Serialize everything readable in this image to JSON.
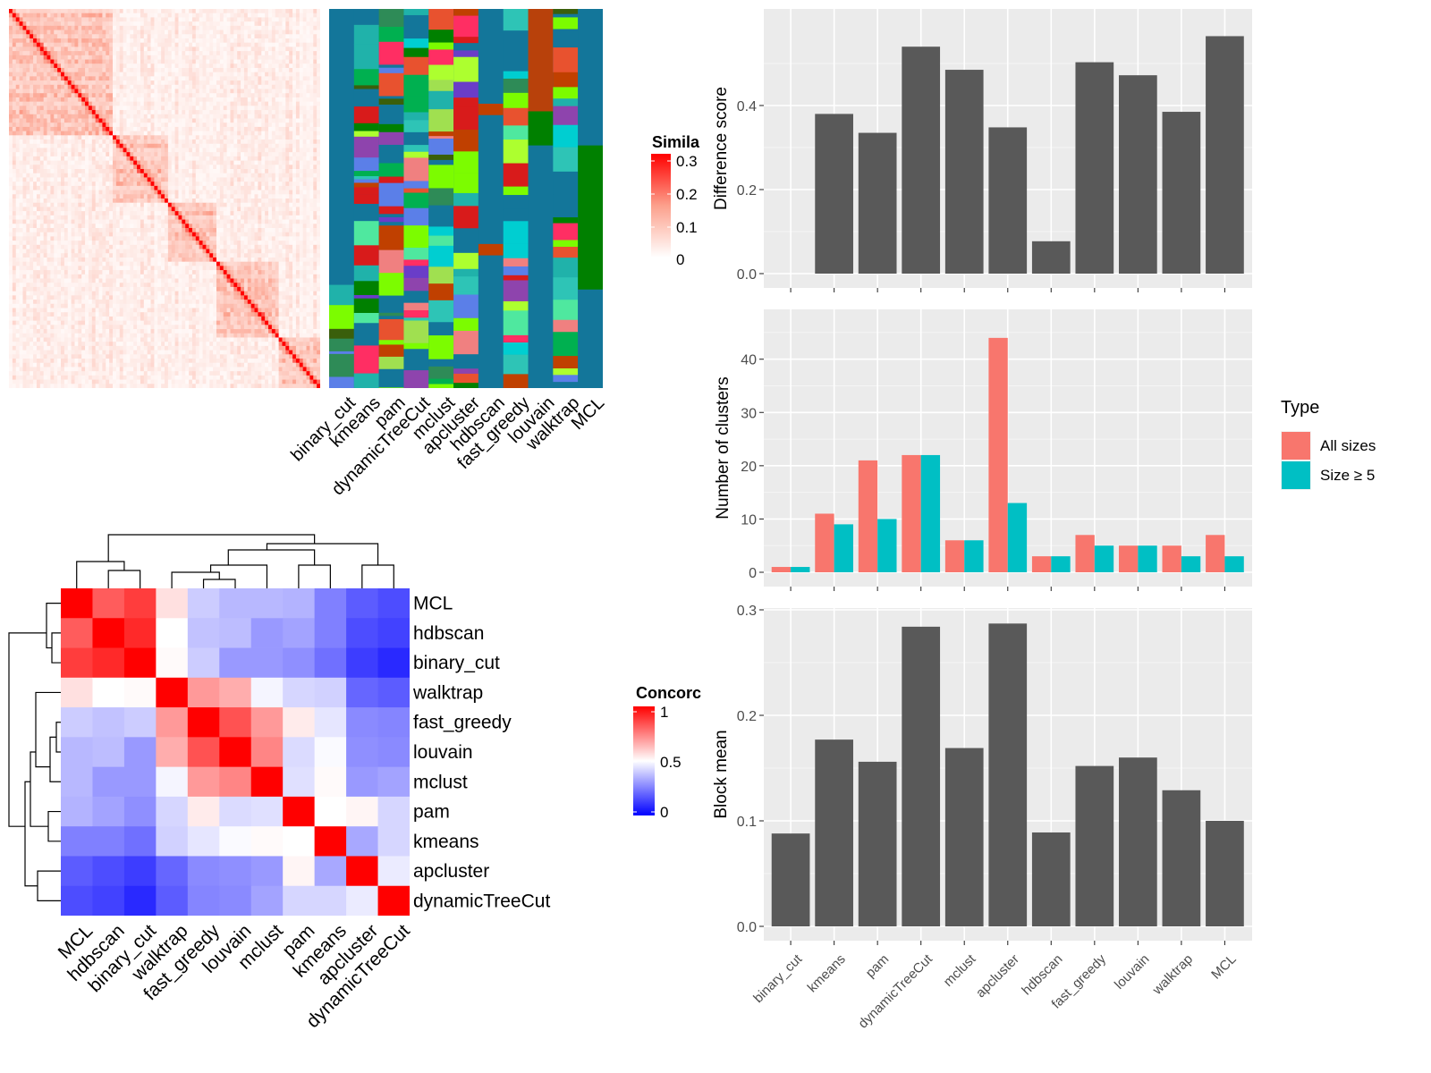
{
  "colors": {
    "panel_bg": "#EBEBEB",
    "bar_fill": "#595959",
    "all_sizes": "#F8766D",
    "size_ge5": "#00BFC4",
    "heat_high": "#FF0000",
    "conc_low": "#0000FF",
    "base_blue": "#13769A"
  },
  "similarity_heatmap": {
    "legend_title": "Simila",
    "legend_ticks": [
      "0.3",
      "0.2",
      "0.1",
      "0"
    ],
    "n": 90,
    "blocks": [
      [
        0,
        30
      ],
      [
        30,
        46
      ],
      [
        46,
        60
      ],
      [
        60,
        78
      ],
      [
        78,
        90
      ]
    ]
  },
  "membership_annotation": {
    "methods": [
      "binary_cut",
      "kmeans",
      "pam",
      "dynamicTreeCut",
      "mclust",
      "apcluster",
      "hdbscan",
      "fast_greedy",
      "louvain",
      "walktrap",
      "MCL"
    ]
  },
  "concordance_heatmap": {
    "legend_title": "Concorc",
    "legend_ticks": [
      "1",
      "0.5",
      "0"
    ],
    "row_labels": [
      "MCL",
      "hdbscan",
      "binary_cut",
      "walktrap",
      "fast_greedy",
      "louvain",
      "mclust",
      "pam",
      "kmeans",
      "apcluster",
      "dynamicTreeCut"
    ],
    "col_labels": [
      "MCL",
      "hdbscan",
      "binary_cut",
      "walktrap",
      "fast_greedy",
      "louvain",
      "mclust",
      "pam",
      "kmeans",
      "apcluster",
      "dynamicTreeCut"
    ],
    "values": [
      [
        1.0,
        0.82,
        0.88,
        0.56,
        0.4,
        0.36,
        0.36,
        0.35,
        0.25,
        0.18,
        0.15
      ],
      [
        0.82,
        1.0,
        0.92,
        0.5,
        0.38,
        0.37,
        0.3,
        0.32,
        0.25,
        0.15,
        0.13
      ],
      [
        0.88,
        0.92,
        1.0,
        0.51,
        0.4,
        0.3,
        0.3,
        0.28,
        0.22,
        0.12,
        0.08
      ],
      [
        0.56,
        0.5,
        0.51,
        1.0,
        0.7,
        0.66,
        0.48,
        0.42,
        0.41,
        0.2,
        0.18
      ],
      [
        0.4,
        0.38,
        0.4,
        0.7,
        1.0,
        0.84,
        0.7,
        0.54,
        0.45,
        0.27,
        0.26
      ],
      [
        0.36,
        0.37,
        0.3,
        0.66,
        0.84,
        1.0,
        0.74,
        0.43,
        0.49,
        0.28,
        0.27
      ],
      [
        0.36,
        0.3,
        0.3,
        0.48,
        0.7,
        0.74,
        1.0,
        0.44,
        0.51,
        0.3,
        0.32
      ],
      [
        0.35,
        0.32,
        0.28,
        0.42,
        0.54,
        0.43,
        0.44,
        1.0,
        0.5,
        0.52,
        0.42
      ],
      [
        0.25,
        0.25,
        0.22,
        0.41,
        0.45,
        0.49,
        0.51,
        0.5,
        1.0,
        0.33,
        0.42
      ],
      [
        0.18,
        0.15,
        0.12,
        0.2,
        0.27,
        0.28,
        0.3,
        0.52,
        0.33,
        1.0,
        0.46
      ],
      [
        0.15,
        0.13,
        0.08,
        0.18,
        0.26,
        0.27,
        0.32,
        0.42,
        0.42,
        0.46,
        1.0
      ]
    ]
  },
  "chart_data": [
    {
      "type": "bar",
      "categories": [
        "binary_cut",
        "kmeans",
        "pam",
        "dynamicTreeCut",
        "mclust",
        "apcluster",
        "hdbscan",
        "fast_greedy",
        "louvain",
        "walktrap",
        "MCL"
      ],
      "values": [
        0.0,
        0.38,
        0.335,
        0.54,
        0.485,
        0.348,
        0.077,
        0.503,
        0.472,
        0.385,
        0.565
      ],
      "ylabel": "Difference score",
      "ylim": [
        0,
        0.6
      ],
      "yticks": [
        0.0,
        0.2,
        0.4
      ],
      "ytick_labels": [
        "0.0",
        "0.2",
        "0.4"
      ],
      "grid": true
    },
    {
      "type": "bar",
      "categories": [
        "binary_cut",
        "kmeans",
        "pam",
        "dynamicTreeCut",
        "mclust",
        "apcluster",
        "hdbscan",
        "fast_greedy",
        "louvain",
        "walktrap",
        "MCL"
      ],
      "series": [
        {
          "name": "All sizes",
          "values": [
            1,
            11,
            21,
            22,
            6,
            44,
            3,
            7,
            5,
            5,
            7
          ]
        },
        {
          "name": "Size ≥ 5",
          "values": [
            1,
            9,
            10,
            22,
            6,
            13,
            3,
            5,
            5,
            3,
            3
          ]
        }
      ],
      "ylabel": "Number of clusters",
      "ylim": [
        0,
        47
      ],
      "yticks": [
        0,
        10,
        20,
        30,
        40
      ],
      "ytick_labels": [
        "0",
        "10",
        "20",
        "30",
        "40"
      ],
      "legend_title": "Type",
      "legend_position": "right",
      "grid": true
    },
    {
      "type": "bar",
      "categories": [
        "binary_cut",
        "kmeans",
        "pam",
        "dynamicTreeCut",
        "mclust",
        "apcluster",
        "hdbscan",
        "fast_greedy",
        "louvain",
        "walktrap",
        "MCL"
      ],
      "values": [
        0.088,
        0.177,
        0.156,
        0.284,
        0.169,
        0.287,
        0.089,
        0.152,
        0.16,
        0.129,
        0.1
      ],
      "ylabel": "Block mean",
      "ylim": [
        0,
        0.3
      ],
      "yticks": [
        0.0,
        0.1,
        0.2,
        0.3
      ],
      "ytick_labels": [
        "0.0",
        "0.1",
        "0.2",
        "0.3"
      ],
      "grid": true
    }
  ]
}
